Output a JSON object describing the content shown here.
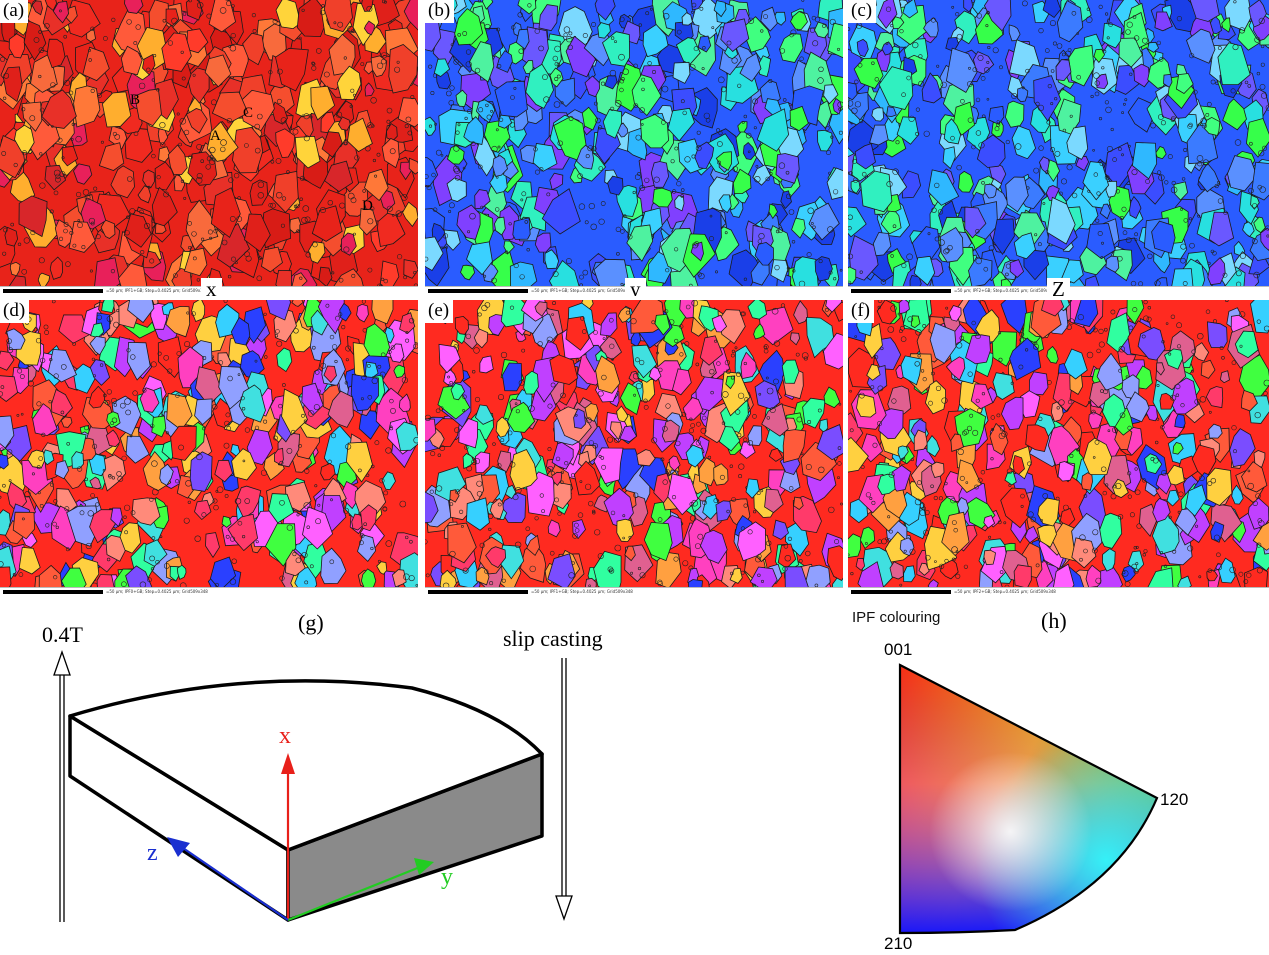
{
  "panels": [
    {
      "label": "(a)",
      "axis": "x",
      "scale_info": "=50 µm; IPF1+GB; Step=0.4025 µm; Grid509x348",
      "palette": "red"
    },
    {
      "label": "(b)",
      "axis": "y",
      "scale_info": "=50 µm; IPF1+GB; Step=0.4025 µm; Grid509x348",
      "palette": "bluegreen"
    },
    {
      "label": "(c)",
      "axis": "Z",
      "scale_info": "=50 µm; IPF2+GB; Step=0.4025 µm; Grid509x348",
      "palette": "bluegreen"
    },
    {
      "label": "(d)",
      "axis": "",
      "scale_info": "=50 µm; IPF0+GB; Step=0.4025 µm; Grid509x348",
      "palette": "mixed"
    },
    {
      "label": "(e)",
      "axis": "",
      "scale_info": "=50 µm; IPF1+GB; Step=0.4025 µm; Grid509x348",
      "palette": "mixed"
    },
    {
      "label": "(f)",
      "axis": "",
      "scale_info": "=50 µm; IPF2+GB; Step=0.4025 µm; Grid509x348",
      "palette": "mixed"
    }
  ],
  "grain_markers": [
    "B",
    "A",
    "C",
    "D"
  ],
  "panel_g": {
    "label": "(g)",
    "field_label": "0.4T",
    "process_label": "slip casting",
    "axes": {
      "x": "x",
      "y": "y",
      "z": "z"
    },
    "axis_colors": {
      "x": "#e8201a",
      "y": "#22cc22",
      "z": "#1a2fd0"
    }
  },
  "panel_h": {
    "label": "(h)",
    "title": "IPF colouring",
    "corners": {
      "top": "001",
      "right": "120",
      "bottom": "210"
    }
  }
}
